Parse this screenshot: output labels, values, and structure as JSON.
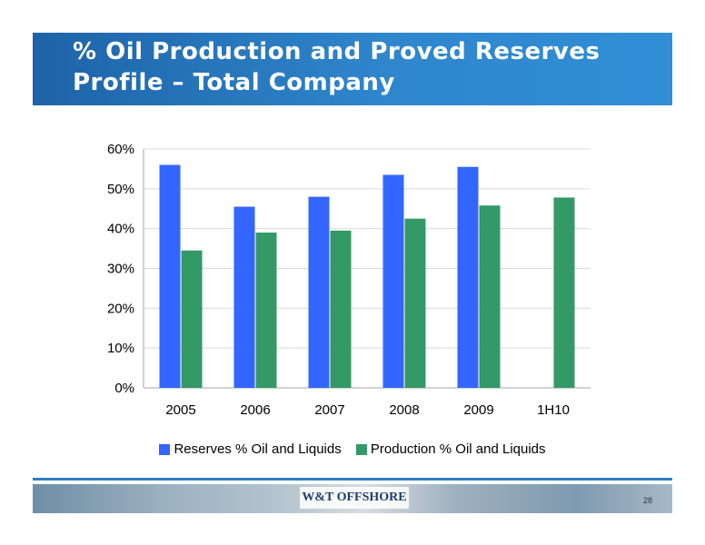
{
  "slide": {
    "title": "% Oil Production and Proved Reserves Profile – Total Company",
    "page_number": "28",
    "footer_logo": "W&T OFFSHORE"
  },
  "colors": {
    "title_band": "#2a78c0",
    "reserves": "#3366ff",
    "production": "#339966",
    "grid": "#d9d9d9"
  },
  "chart_data": {
    "type": "bar",
    "categories": [
      "2005",
      "2006",
      "2007",
      "2008",
      "2009",
      "1H10"
    ],
    "series": [
      {
        "name": "Reserves % Oil and Liquids",
        "values": [
          56,
          45.5,
          48,
          53.5,
          55.5,
          null
        ]
      },
      {
        "name": "Production % Oil and Liquids",
        "values": [
          34.5,
          39,
          39.5,
          42.5,
          45.8,
          47.8
        ]
      }
    ],
    "ylim": [
      0,
      60
    ],
    "yticks": [
      "0%",
      "10%",
      "20%",
      "30%",
      "40%",
      "50%",
      "60%"
    ],
    "xlabel": "",
    "ylabel": "",
    "grid": true,
    "legend": "bottom"
  }
}
